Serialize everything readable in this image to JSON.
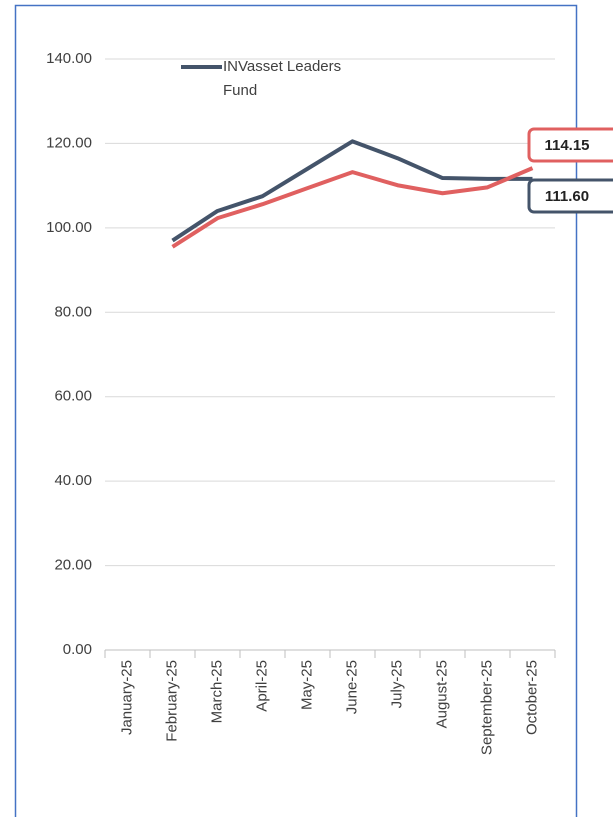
{
  "chart_data": {
    "type": "line",
    "categories": [
      "January-25",
      "February-25",
      "March-25",
      "April-25",
      "May-25",
      "June-25",
      "July-25",
      "August-25",
      "September-25",
      "October-25"
    ],
    "series": [
      {
        "name": "INVasset Leaders Fund",
        "color": "#44546a",
        "values": [
          null,
          97,
          104,
          107.5,
          114,
          120.5,
          116.5,
          111.8,
          111.6,
          111.6
        ],
        "value_labels": [
          null,
          null,
          null,
          null,
          null,
          null,
          null,
          null,
          null,
          "111.60"
        ]
      },
      {
        "color": "#e06060",
        "values": [
          null,
          95.5,
          102.3,
          105.6,
          109.4,
          113.2,
          110.1,
          108.2,
          109.6,
          114.15
        ],
        "value_labels": [
          null,
          null,
          null,
          null,
          null,
          null,
          null,
          null,
          null,
          "114.15"
        ]
      }
    ],
    "ylim": [
      0,
      140
    ],
    "yticks": [
      {
        "value": 0,
        "label": "0.00"
      },
      {
        "value": 20,
        "label": "20.00"
      },
      {
        "value": 40,
        "label": "40.00"
      },
      {
        "value": 60,
        "label": "60.00"
      },
      {
        "value": 80,
        "label": "80.00"
      },
      {
        "value": 100,
        "label": "100.00"
      },
      {
        "value": 120,
        "label": "120.00"
      },
      {
        "value": 140,
        "label": "140.00"
      }
    ],
    "grid": true
  }
}
